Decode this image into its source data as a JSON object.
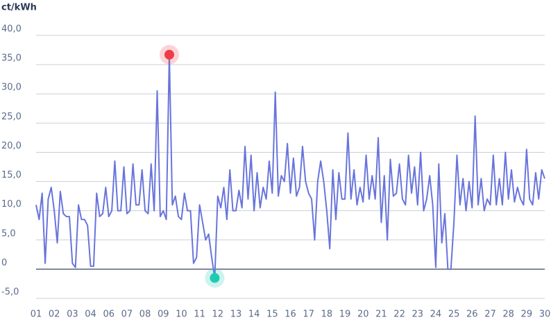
{
  "chart_data": {
    "type": "line",
    "ylabel": "ct/kWh",
    "color": "#6874dc",
    "max_color": "#ee3b48",
    "min_color": "#1fcab3",
    "grid": true,
    "ylim": [
      -5,
      40
    ],
    "yticks": [
      {
        "value": -5,
        "label": "-5,0"
      },
      0,
      {
        "value": 5,
        "label": "5,0"
      },
      {
        "value": 10,
        "label": "10,0"
      },
      {
        "value": 15,
        "label": "15,0"
      },
      {
        "value": 20,
        "label": "20,0"
      },
      {
        "value": 25,
        "label": "25,0"
      },
      {
        "value": 30,
        "label": "30,0"
      },
      {
        "value": 35,
        "label": "35,0"
      },
      {
        "value": 40,
        "label": "40,0"
      }
    ],
    "xlim": [
      0,
      672
    ],
    "xticks": [
      {
        "value": 0,
        "label": "01"
      },
      {
        "value": 24,
        "label": "02"
      },
      {
        "value": 48,
        "label": "03"
      },
      {
        "value": 72,
        "label": "04"
      },
      {
        "value": 96,
        "label": "06"
      },
      {
        "value": 120,
        "label": "07"
      },
      {
        "value": 144,
        "label": "08"
      },
      {
        "value": 168,
        "label": "09"
      },
      {
        "value": 192,
        "label": "10"
      },
      {
        "value": 216,
        "label": "11"
      },
      {
        "value": 240,
        "label": "12"
      },
      {
        "value": 264,
        "label": "13"
      },
      {
        "value": 288,
        "label": "14"
      },
      {
        "value": 312,
        "label": "15"
      },
      {
        "value": 336,
        "label": "16"
      },
      {
        "value": 360,
        "label": "17"
      },
      {
        "value": 384,
        "label": "18"
      },
      {
        "value": 408,
        "label": "19"
      },
      {
        "value": 432,
        "label": "20"
      },
      {
        "value": 456,
        "label": "21"
      },
      {
        "value": 480,
        "label": "22"
      },
      {
        "value": 504,
        "label": "23"
      },
      {
        "value": 528,
        "label": "24"
      },
      {
        "value": 552,
        "label": "25"
      },
      {
        "value": 576,
        "label": "26"
      },
      {
        "value": 600,
        "label": "27"
      },
      {
        "value": 624,
        "label": "28"
      },
      {
        "value": 648,
        "label": "29"
      },
      {
        "value": 672,
        "label": "30"
      }
    ],
    "x": [
      0,
      4,
      8,
      12,
      16,
      20,
      24,
      28,
      32,
      36,
      40,
      44,
      48,
      52,
      56,
      60,
      64,
      68,
      72,
      76,
      80,
      84,
      88,
      92,
      96,
      100,
      104,
      108,
      112,
      116,
      120,
      124,
      128,
      132,
      136,
      140,
      144,
      148,
      152,
      156,
      160,
      164,
      168,
      172,
      176,
      180,
      184,
      188,
      192,
      196,
      200,
      204,
      208,
      212,
      216,
      220,
      224,
      228,
      232,
      236,
      240,
      244,
      248,
      252,
      256,
      260,
      264,
      268,
      272,
      276,
      280,
      284,
      288,
      292,
      296,
      300,
      304,
      308,
      312,
      316,
      320,
      324,
      328,
      332,
      336,
      340,
      344,
      348,
      352,
      356,
      360,
      364,
      368,
      372,
      376,
      380,
      384,
      388,
      392,
      396,
      400,
      404,
      408,
      412,
      416,
      420,
      424,
      428,
      432,
      436,
      440,
      444,
      448,
      452,
      456,
      460,
      464,
      468,
      472,
      476,
      480,
      484,
      488,
      492,
      496,
      500,
      504,
      508,
      512,
      516,
      520,
      524,
      528,
      532,
      536,
      540,
      544,
      548,
      552,
      556,
      560,
      564,
      568,
      572,
      576,
      580,
      584,
      588,
      592,
      596,
      600,
      604,
      608,
      612,
      616,
      620,
      624,
      628,
      632,
      636,
      640,
      644,
      648,
      652,
      656,
      660,
      664,
      668,
      672
    ],
    "values": [
      11,
      8.5,
      13,
      1,
      12,
      14,
      10,
      4.5,
      13.3,
      9.5,
      9,
      9,
      1,
      0.3,
      11,
      8.5,
      8.5,
      7.5,
      0.5,
      0.5,
      13,
      9,
      9.5,
      14,
      9,
      10,
      18.5,
      10,
      10,
      17.5,
      9.5,
      10,
      18,
      11,
      11,
      17,
      10,
      9.5,
      18,
      10,
      30.5,
      9,
      10,
      8.5,
      36.7,
      11,
      12.5,
      9,
      8.5,
      13,
      10,
      10,
      1,
      2,
      11,
      8,
      5,
      6,
      2,
      -1.5,
      12.5,
      10.5,
      14,
      8.5,
      17,
      10,
      10,
      13.5,
      10.5,
      21,
      12,
      19.5,
      10,
      16.5,
      10.5,
      14,
      12,
      18.5,
      13,
      30.3,
      12.5,
      16,
      15,
      21.5,
      13,
      19,
      12.5,
      14,
      21,
      15,
      13,
      12,
      5,
      15,
      18.5,
      15,
      10,
      3.5,
      17,
      8.5,
      16.5,
      12,
      12,
      23.3,
      12,
      17,
      11,
      14,
      11.5,
      19.5,
      12,
      16,
      12,
      22.5,
      8,
      16,
      5,
      18.8,
      12.5,
      13,
      18,
      12,
      11,
      19.5,
      13,
      17.5,
      11,
      20,
      10,
      12,
      16,
      11,
      0.3,
      18,
      4.5,
      9.5,
      0,
      0,
      8,
      19.5,
      11,
      15.5,
      10,
      15,
      10.5,
      26.2,
      11,
      15.5,
      10,
      12,
      11,
      19.5,
      11,
      15.5,
      11,
      20,
      12,
      17,
      11.5,
      14,
      12,
      11,
      20.5,
      12,
      11,
      16.5,
      12,
      17,
      15.5
    ]
  }
}
